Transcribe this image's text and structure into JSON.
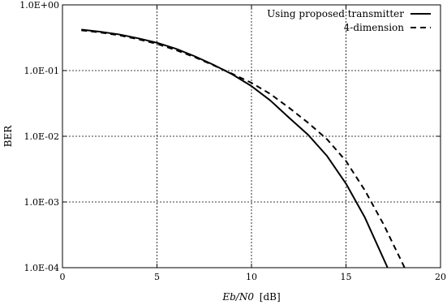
{
  "chart_data": {
    "type": "line",
    "xlabel_italic": "Eb/N0",
    "xlabel_unit": "[dB]",
    "ylabel": "BER",
    "xlim": [
      0,
      20
    ],
    "ylim": [
      0.0001,
      1
    ],
    "y_scale": "log",
    "grid": true,
    "legend_position": "top-right",
    "x_ticks": [
      0,
      5,
      10,
      15,
      20
    ],
    "x_tick_labels": [
      "0",
      "5",
      "10",
      "15",
      "20"
    ],
    "y_ticks": [
      1,
      0.1,
      0.01,
      0.001,
      0.0001
    ],
    "y_tick_labels": [
      "1.0E+00",
      "1.0E-01",
      "1.0E-02",
      "1.0E-03",
      "1.0E-04"
    ],
    "series": [
      {
        "name": "Using proposed transmitter",
        "line_style": "solid",
        "x": [
          1,
          2,
          3,
          4,
          5,
          6,
          7,
          8,
          9,
          10,
          11,
          12,
          13,
          14,
          15,
          16,
          17.2
        ],
        "y": [
          0.42,
          0.39,
          0.355,
          0.31,
          0.265,
          0.215,
          0.165,
          0.122,
          0.087,
          0.058,
          0.035,
          0.019,
          0.0105,
          0.005,
          0.0019,
          0.00058,
          0.0001
        ]
      },
      {
        "name": "4-dimension",
        "line_style": "dashed",
        "x": [
          1,
          2,
          3,
          4,
          5,
          6,
          7,
          8,
          9,
          10,
          11,
          12,
          13,
          14,
          15,
          16,
          17,
          18.1
        ],
        "y": [
          0.41,
          0.38,
          0.345,
          0.3,
          0.255,
          0.205,
          0.16,
          0.12,
          0.089,
          0.065,
          0.044,
          0.027,
          0.016,
          0.009,
          0.0042,
          0.0015,
          0.00045,
          0.0001
        ]
      }
    ]
  }
}
